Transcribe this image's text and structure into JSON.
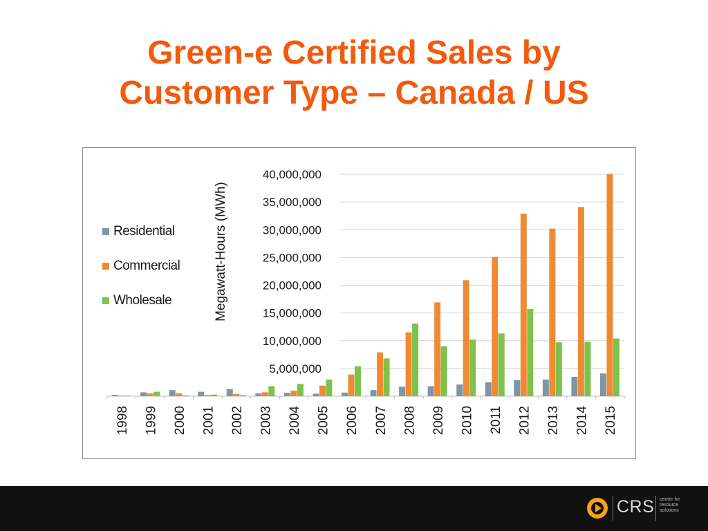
{
  "slide": {
    "title_line1": "Green-e Certified Sales by",
    "title_line2": "Customer Type – Canada / US"
  },
  "chart_data": {
    "type": "bar",
    "title": "",
    "xlabel": "",
    "ylabel": "Megawatt-Hours (MWh)",
    "ylim": [
      0,
      40000000
    ],
    "y_ticks": [
      "5,000,000",
      "10,000,000",
      "15,000,000",
      "20,000,000",
      "25,000,000",
      "30,000,000",
      "35,000,000",
      "40,000,000"
    ],
    "y_tick_values": [
      5000000,
      10000000,
      15000000,
      20000000,
      25000000,
      30000000,
      35000000,
      40000000
    ],
    "grid": true,
    "legend_position": "left",
    "categories": [
      "1998",
      "1999",
      "2000",
      "2001",
      "2002",
      "2003",
      "2004",
      "2005",
      "2006",
      "2007",
      "2008",
      "2009",
      "2010",
      "2011",
      "2012",
      "2013",
      "2014",
      "2015"
    ],
    "series": [
      {
        "name": "Residential",
        "color": "#7f96a6",
        "values": [
          250000,
          700000,
          1100000,
          800000,
          1300000,
          500000,
          600000,
          450000,
          650000,
          1100000,
          1700000,
          1800000,
          2100000,
          2500000,
          2900000,
          3000000,
          3500000,
          4100000
        ]
      },
      {
        "name": "Commercial",
        "color": "#ef8a34",
        "values": [
          100000,
          500000,
          500000,
          200000,
          400000,
          700000,
          1000000,
          1900000,
          3900000,
          7900000,
          11500000,
          16900000,
          20900000,
          25100000,
          32900000,
          30200000,
          34100000,
          40000000
        ]
      },
      {
        "name": "Wholesale",
        "color": "#7fc24a",
        "values": [
          100000,
          800000,
          150000,
          300000,
          200000,
          1800000,
          2200000,
          3000000,
          5400000,
          6800000,
          13100000,
          9000000,
          10200000,
          11300000,
          15700000,
          9700000,
          9800000,
          10400000
        ]
      }
    ]
  },
  "footer": {
    "logo_text": "CRS",
    "logo_tagline": "center for resource solutions",
    "logo_icon": "play-circle-icon",
    "bar_color": "#111111"
  },
  "colors": {
    "title": "#f25a0e"
  }
}
